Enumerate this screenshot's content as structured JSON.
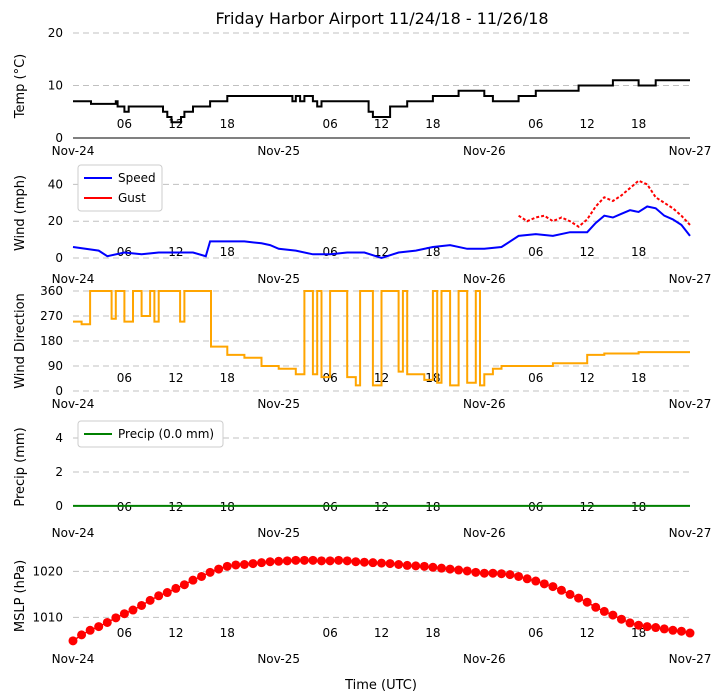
{
  "title": "Friday Harbor Airport 11/24/18 - 11/26/18",
  "xlabel": "Time (UTC)",
  "x_ticks": [
    "Nov-24",
    "06",
    "12",
    "18",
    "Nov-25",
    "06",
    "12",
    "18",
    "Nov-26",
    "06",
    "12",
    "18",
    "Nov-27"
  ],
  "x_range_hours": [
    0,
    72
  ],
  "colors": {
    "temp": "#000000",
    "speed": "#0000ff",
    "gust": "#ff0000",
    "direction": "#ffa500",
    "precip": "#008000",
    "mslp": "#ff0000",
    "grid": "#c0c0c0"
  },
  "chart_data": [
    {
      "id": "temp",
      "type": "line",
      "ylabel": "Temp ($^\\circ$C)",
      "ylabel_text": "Temp (°C)",
      "ylim": [
        0,
        20
      ],
      "yticks": [
        0,
        10,
        20
      ],
      "x_unit": "hours since Nov-24 00 UTC",
      "series": [
        {
          "name": "Temp",
          "color": "#000000",
          "x": [
            0,
            2,
            2.1,
            5,
            5.2,
            5.6,
            6,
            6.5,
            10,
            10.5,
            11,
            11.5,
            11.7,
            12.6,
            13,
            14,
            15,
            16,
            18,
            20,
            21,
            22,
            25,
            25.6,
            26,
            26.5,
            27,
            28,
            28.5,
            29,
            33,
            34.5,
            35,
            36,
            37,
            39,
            41,
            42,
            43,
            45,
            48,
            49,
            51,
            52,
            54,
            56,
            58,
            59,
            60,
            61,
            63,
            64,
            66,
            67,
            68,
            72
          ],
          "y": [
            7,
            7,
            6.5,
            7,
            6,
            6,
            5,
            6,
            6,
            5,
            4,
            3,
            3,
            4,
            5,
            6,
            6,
            7,
            8,
            8,
            8,
            8,
            8,
            7,
            8,
            7,
            8,
            7,
            6,
            7,
            7,
            5,
            4,
            4,
            6,
            7,
            7,
            8,
            8,
            9,
            8,
            7,
            7,
            8,
            9,
            9,
            9,
            10,
            10,
            10,
            11,
            11,
            10,
            10,
            11,
            11
          ]
        }
      ]
    },
    {
      "id": "wind",
      "type": "line",
      "ylabel": "Wind (mph)",
      "ylim": [
        0,
        50
      ],
      "yticks": [
        0,
        20,
        40
      ],
      "legend": [
        "Speed",
        "Gust"
      ],
      "series": [
        {
          "name": "Speed",
          "color": "#0000ff",
          "x": [
            0,
            3,
            4,
            6,
            8,
            10,
            12,
            14,
            15.5,
            16,
            18,
            20,
            22,
            23,
            24,
            26,
            28,
            30,
            32,
            34,
            36,
            38,
            40,
            42,
            44,
            46,
            48,
            50,
            52,
            54,
            56,
            58,
            59,
            60,
            61,
            62,
            63,
            64,
            65,
            66,
            67,
            68,
            69,
            70,
            71,
            72
          ],
          "y": [
            6,
            4,
            1,
            3,
            2,
            3,
            3,
            3,
            1,
            9,
            9,
            9,
            8,
            7,
            5,
            4,
            2,
            2,
            3,
            3,
            0,
            3,
            4,
            6,
            7,
            5,
            5,
            6,
            12,
            13,
            12,
            14,
            14,
            14,
            19,
            23,
            22,
            24,
            26,
            25,
            28,
            27,
            23,
            21,
            18,
            12
          ]
        },
        {
          "name": "Gust",
          "color": "#ff0000",
          "x": [
            52,
            53,
            54,
            55,
            56,
            57,
            58,
            59,
            60,
            61,
            62,
            63,
            64,
            65,
            66,
            67,
            68,
            69,
            70,
            71,
            72
          ],
          "y": [
            23,
            20,
            22,
            23,
            20,
            22,
            20,
            17,
            21,
            28,
            33,
            31,
            34,
            38,
            42,
            40,
            33,
            30,
            27,
            23,
            18
          ]
        }
      ]
    },
    {
      "id": "wdir",
      "type": "line",
      "ylabel": "Wind Direction",
      "ylim": [
        0,
        360
      ],
      "yticks": [
        0,
        90,
        180,
        270,
        360
      ],
      "color": "#ffa500",
      "series": [
        {
          "name": "Direction",
          "color": "#ffa500",
          "x": [
            0,
            1,
            2,
            3,
            4,
            4.5,
            5,
            6,
            7,
            8,
            9,
            9.5,
            10,
            11,
            12,
            12.5,
            13,
            14,
            15,
            16,
            16.1,
            18,
            20,
            22,
            24,
            26,
            27,
            28,
            28.5,
            29,
            30,
            31,
            32,
            33,
            33.5,
            34,
            35,
            36,
            37,
            38,
            38.5,
            39,
            40,
            41,
            42,
            42.5,
            43,
            44,
            45,
            46,
            47,
            47.5,
            48,
            49,
            50,
            51,
            52,
            54,
            56,
            58,
            60,
            62,
            64,
            66,
            68,
            70,
            72
          ],
          "y": [
            250,
            240,
            360,
            360,
            360,
            260,
            360,
            250,
            360,
            270,
            360,
            250,
            360,
            360,
            360,
            250,
            360,
            360,
            360,
            360,
            160,
            130,
            120,
            90,
            80,
            60,
            360,
            60,
            360,
            50,
            360,
            360,
            50,
            20,
            360,
            360,
            20,
            360,
            360,
            70,
            360,
            60,
            60,
            40,
            360,
            30,
            360,
            20,
            360,
            30,
            360,
            20,
            60,
            80,
            90,
            90,
            90,
            90,
            100,
            100,
            130,
            135,
            135,
            140,
            140,
            140,
            140
          ]
        }
      ]
    },
    {
      "id": "precip",
      "type": "line",
      "ylabel": "Precip (mm)",
      "ylim": [
        -0.3,
        5
      ],
      "yticks": [
        0,
        2,
        4
      ],
      "legend": [
        "Precip (0.0 mm)"
      ],
      "series": [
        {
          "name": "Precip (0.0 mm)",
          "color": "#008000",
          "x": [
            0,
            72
          ],
          "y": [
            0,
            0
          ]
        }
      ]
    },
    {
      "id": "mslp",
      "type": "scatter-line",
      "ylabel": "MSLP (hPa)",
      "ylim": [
        1004,
        1024
      ],
      "yticks": [
        1010,
        1020
      ],
      "series": [
        {
          "name": "MSLP",
          "color": "#ff0000",
          "x": [
            0,
            1,
            2,
            3,
            4,
            5,
            6,
            7,
            8,
            9,
            10,
            11,
            12,
            13,
            14,
            15,
            16,
            17,
            18,
            19,
            20,
            21,
            22,
            23,
            24,
            25,
            26,
            27,
            28,
            29,
            30,
            31,
            32,
            33,
            34,
            35,
            36,
            37,
            38,
            39,
            40,
            41,
            42,
            43,
            44,
            45,
            46,
            47,
            48,
            49,
            50,
            51,
            52,
            53,
            54,
            55,
            56,
            57,
            58,
            59,
            60,
            61,
            62,
            63,
            64,
            65,
            66,
            67,
            68,
            69,
            70,
            71,
            72
          ],
          "y": [
            1004.9,
            1006.2,
            1007.2,
            1008.0,
            1008.9,
            1009.9,
            1010.8,
            1011.6,
            1012.6,
            1013.7,
            1014.7,
            1015.4,
            1016.3,
            1017.1,
            1018.1,
            1018.9,
            1019.8,
            1020.5,
            1021.1,
            1021.4,
            1021.5,
            1021.7,
            1021.9,
            1022.1,
            1022.2,
            1022.3,
            1022.4,
            1022.4,
            1022.4,
            1022.3,
            1022.3,
            1022.4,
            1022.3,
            1022.1,
            1022.0,
            1021.9,
            1021.8,
            1021.7,
            1021.5,
            1021.3,
            1021.2,
            1021.1,
            1020.9,
            1020.7,
            1020.5,
            1020.3,
            1020.1,
            1019.8,
            1019.6,
            1019.6,
            1019.5,
            1019.3,
            1018.9,
            1018.4,
            1017.9,
            1017.3,
            1016.7,
            1015.9,
            1015.0,
            1014.2,
            1013.3,
            1012.2,
            1011.3,
            1010.5,
            1009.6,
            1008.8,
            1008.3,
            1008.0,
            1007.8,
            1007.5,
            1007.2,
            1007.0,
            1006.6
          ]
        }
      ]
    }
  ]
}
